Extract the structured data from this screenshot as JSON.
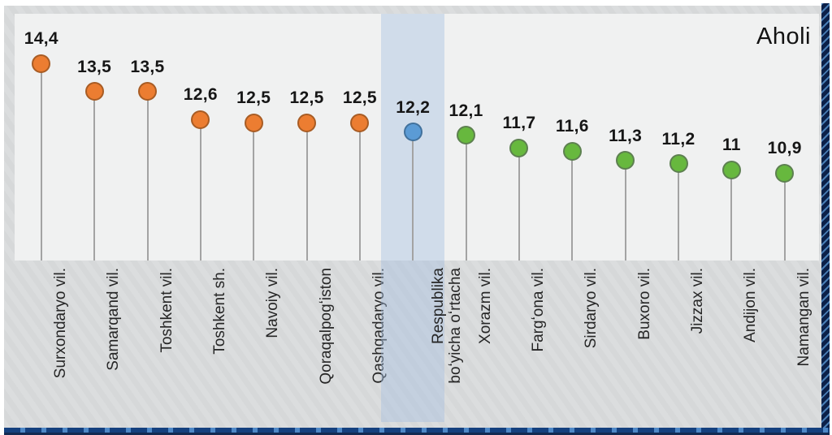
{
  "chart_data": {
    "type": "scatter",
    "variant": "lollipop",
    "title": "Aholi",
    "decimal_separator": ",",
    "legend": null,
    "grid": false,
    "ylim": [
      8.1,
      16
    ],
    "highlight_index": 7,
    "series_colors": {
      "above-average": {
        "fill": "#ec7d31",
        "stroke": "#a85c24"
      },
      "average": {
        "fill": "#5b9bd5",
        "stroke": "#41719c"
      },
      "below-average": {
        "fill": "#67b83e",
        "stroke": "#5d8050"
      }
    },
    "points": [
      {
        "category_lines": [
          "Surxondaryo vil."
        ],
        "value": 14.4,
        "label": "14,4",
        "series": "above-average"
      },
      {
        "category_lines": [
          "Samarqand vil."
        ],
        "value": 13.5,
        "label": "13,5",
        "series": "above-average"
      },
      {
        "category_lines": [
          "Toshkent vil."
        ],
        "value": 13.5,
        "label": "13,5",
        "series": "above-average"
      },
      {
        "category_lines": [
          "Toshkent sh."
        ],
        "value": 12.6,
        "label": "12,6",
        "series": "above-average"
      },
      {
        "category_lines": [
          "Navoiy vil."
        ],
        "value": 12.5,
        "label": "12,5",
        "series": "above-average"
      },
      {
        "category_lines": [
          "Qoraqalpogʻiston"
        ],
        "value": 12.5,
        "label": "12,5",
        "series": "above-average"
      },
      {
        "category_lines": [
          "Qashqadaryo vil."
        ],
        "value": 12.5,
        "label": "12,5",
        "series": "above-average"
      },
      {
        "category_lines": [
          "Respublika",
          "boʻyicha oʻrtacha"
        ],
        "value": 12.2,
        "label": "12,2",
        "series": "average"
      },
      {
        "category_lines": [
          "Xorazm vil."
        ],
        "value": 12.1,
        "label": "12,1",
        "series": "below-average"
      },
      {
        "category_lines": [
          "Fargʻona vil."
        ],
        "value": 11.7,
        "label": "11,7",
        "series": "below-average"
      },
      {
        "category_lines": [
          "Sirdaryo vil."
        ],
        "value": 11.6,
        "label": "11,6",
        "series": "below-average"
      },
      {
        "category_lines": [
          "Buxoro vil."
        ],
        "value": 11.3,
        "label": "11,3",
        "series": "below-average"
      },
      {
        "category_lines": [
          "Jizzax vil."
        ],
        "value": 11.2,
        "label": "11,2",
        "series": "below-average"
      },
      {
        "category_lines": [
          "Andijon vil."
        ],
        "value": 11.0,
        "label": "11",
        "series": "below-average"
      },
      {
        "category_lines": [
          "Namangan vil."
        ],
        "value": 10.9,
        "label": "10,9",
        "series": "below-average"
      }
    ]
  }
}
